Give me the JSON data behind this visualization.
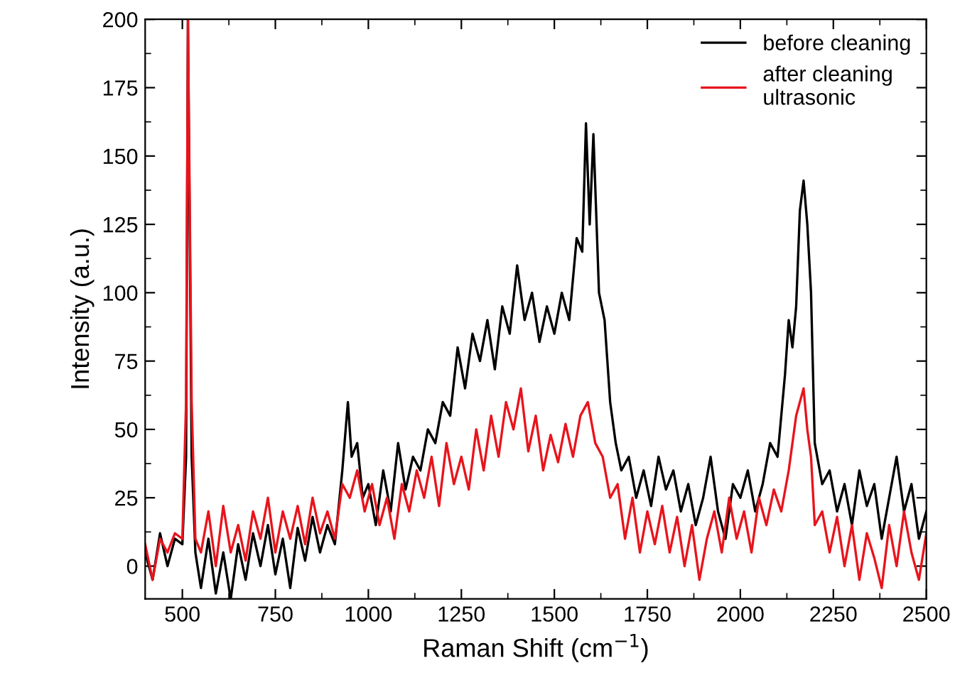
{
  "chart_data": {
    "type": "line",
    "xlabel": "Raman Shift (cm$^{−1}$)",
    "ylabel": "Intensity (a.u.)",
    "xlim": [
      400,
      2500
    ],
    "xticks": [
      500,
      750,
      1000,
      1250,
      1500,
      1750,
      2000,
      2250,
      2500
    ],
    "ylim": [
      -12,
      200
    ],
    "yticks": [
      0,
      25,
      50,
      75,
      100,
      125,
      150,
      175,
      200
    ],
    "grid": false,
    "legend": "top right",
    "marker": "none",
    "line_style": "solid",
    "series": [
      {
        "name": "before cleaning",
        "color": "#000000",
        "x": [
          400,
          420,
          440,
          460,
          480,
          500,
          510,
          515,
          525,
          535,
          550,
          570,
          590,
          610,
          630,
          650,
          670,
          690,
          710,
          730,
          750,
          770,
          790,
          810,
          830,
          850,
          870,
          890,
          910,
          930,
          945,
          955,
          970,
          985,
          1000,
          1020,
          1040,
          1060,
          1080,
          1100,
          1120,
          1140,
          1160,
          1180,
          1200,
          1220,
          1240,
          1260,
          1280,
          1300,
          1320,
          1340,
          1360,
          1380,
          1400,
          1420,
          1440,
          1460,
          1480,
          1500,
          1520,
          1540,
          1560,
          1575,
          1585,
          1595,
          1605,
          1620,
          1635,
          1650,
          1665,
          1680,
          1700,
          1720,
          1740,
          1760,
          1780,
          1800,
          1820,
          1840,
          1860,
          1880,
          1900,
          1920,
          1940,
          1960,
          1980,
          2000,
          2020,
          2040,
          2060,
          2080,
          2100,
          2120,
          2130,
          2140,
          2150,
          2160,
          2170,
          2180,
          2190,
          2200,
          2220,
          2240,
          2260,
          2280,
          2300,
          2320,
          2340,
          2360,
          2380,
          2400,
          2420,
          2440,
          2460,
          2480,
          2500
        ],
        "values": [
          5,
          -5,
          12,
          0,
          10,
          8,
          40,
          200,
          40,
          5,
          -8,
          10,
          -10,
          5,
          -12,
          8,
          -5,
          12,
          0,
          15,
          -3,
          10,
          -8,
          14,
          2,
          18,
          5,
          15,
          8,
          35,
          60,
          40,
          45,
          25,
          30,
          15,
          35,
          20,
          45,
          28,
          40,
          35,
          50,
          45,
          60,
          55,
          80,
          65,
          85,
          75,
          90,
          72,
          95,
          85,
          110,
          90,
          100,
          82,
          95,
          85,
          100,
          90,
          120,
          115,
          162,
          125,
          158,
          100,
          90,
          60,
          45,
          35,
          40,
          25,
          35,
          22,
          40,
          28,
          35,
          20,
          30,
          15,
          25,
          40,
          20,
          10,
          30,
          25,
          35,
          20,
          30,
          45,
          40,
          70,
          90,
          80,
          95,
          130,
          141,
          125,
          100,
          45,
          30,
          35,
          20,
          30,
          15,
          35,
          22,
          30,
          10,
          25,
          40,
          20,
          30,
          10,
          20
        ]
      },
      {
        "name": "after cleaning\nultrasonic",
        "color": "#e8141c",
        "x": [
          400,
          420,
          440,
          460,
          480,
          500,
          510,
          515,
          525,
          535,
          550,
          570,
          590,
          610,
          630,
          650,
          670,
          690,
          710,
          730,
          750,
          770,
          790,
          810,
          830,
          850,
          870,
          890,
          910,
          930,
          950,
          970,
          990,
          1010,
          1030,
          1050,
          1070,
          1090,
          1110,
          1130,
          1150,
          1170,
          1190,
          1210,
          1230,
          1250,
          1270,
          1290,
          1310,
          1330,
          1350,
          1370,
          1390,
          1410,
          1430,
          1450,
          1470,
          1490,
          1510,
          1530,
          1550,
          1570,
          1590,
          1610,
          1630,
          1650,
          1670,
          1690,
          1710,
          1730,
          1750,
          1770,
          1790,
          1810,
          1830,
          1850,
          1870,
          1890,
          1910,
          1930,
          1950,
          1970,
          1990,
          2010,
          2030,
          2050,
          2070,
          2090,
          2110,
          2130,
          2150,
          2170,
          2180,
          2190,
          2200,
          2220,
          2240,
          2260,
          2280,
          2300,
          2320,
          2340,
          2360,
          2380,
          2400,
          2420,
          2440,
          2460,
          2480,
          2500
        ],
        "values": [
          8,
          -5,
          10,
          5,
          12,
          10,
          60,
          200,
          60,
          10,
          5,
          20,
          0,
          22,
          5,
          15,
          2,
          20,
          10,
          25,
          5,
          20,
          10,
          22,
          8,
          25,
          12,
          20,
          10,
          30,
          25,
          35,
          20,
          30,
          15,
          25,
          10,
          30,
          20,
          35,
          25,
          40,
          22,
          45,
          30,
          40,
          28,
          50,
          35,
          55,
          40,
          60,
          50,
          65,
          42,
          55,
          35,
          48,
          38,
          52,
          40,
          55,
          60,
          45,
          40,
          25,
          30,
          10,
          25,
          5,
          20,
          8,
          22,
          5,
          18,
          0,
          15,
          -5,
          10,
          20,
          5,
          25,
          10,
          20,
          5,
          25,
          15,
          28,
          20,
          35,
          55,
          65,
          50,
          40,
          15,
          20,
          5,
          18,
          0,
          15,
          -5,
          12,
          3,
          -8,
          15,
          0,
          20,
          5,
          -5,
          12
        ]
      }
    ]
  }
}
